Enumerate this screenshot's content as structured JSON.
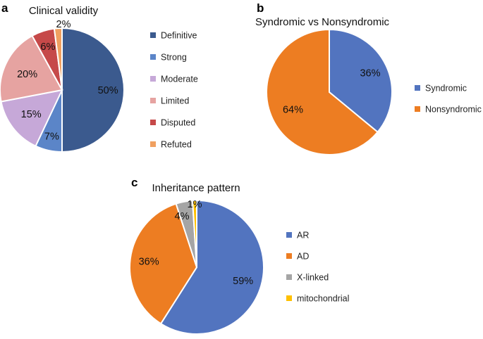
{
  "chart_data": [
    {
      "panel": "a",
      "type": "pie",
      "title": "Clinical validity",
      "slices": [
        {
          "label": "Definitive",
          "value": 50,
          "display": "50%",
          "color": "#3b5a8e"
        },
        {
          "label": "Strong",
          "value": 7,
          "display": "7%",
          "color": "#5b85c8"
        },
        {
          "label": "Moderate",
          "value": 15,
          "display": "15%",
          "color": "#c6a8d8"
        },
        {
          "label": "Limited",
          "value": 20,
          "display": "20%",
          "color": "#e6a3a1"
        },
        {
          "label": "Disputed",
          "value": 6,
          "display": "6%",
          "color": "#c64949"
        },
        {
          "label": "Refuted",
          "value": 2,
          "display": "2%",
          "color": "#f0a060"
        }
      ]
    },
    {
      "panel": "b",
      "type": "pie",
      "title": "Syndromic vs Nonsyndromic",
      "slices": [
        {
          "label": "Syndromic",
          "value": 36,
          "display": "36%",
          "color": "#5274bf"
        },
        {
          "label": "Nonsyndromic",
          "value": 64,
          "display": "64%",
          "color": "#ed7d22"
        }
      ]
    },
    {
      "panel": "c",
      "type": "pie",
      "title": "Inheritance pattern",
      "slices": [
        {
          "label": "AR",
          "value": 59,
          "display": "59%",
          "color": "#5274bf"
        },
        {
          "label": "AD",
          "value": 36,
          "display": "36%",
          "color": "#ed7d22"
        },
        {
          "label": "X-linked",
          "value": 4,
          "display": "4%",
          "color": "#a5a5a5"
        },
        {
          "label": "mitochondrial",
          "value": 1,
          "display": "1%",
          "color": "#ffc000"
        }
      ]
    }
  ]
}
